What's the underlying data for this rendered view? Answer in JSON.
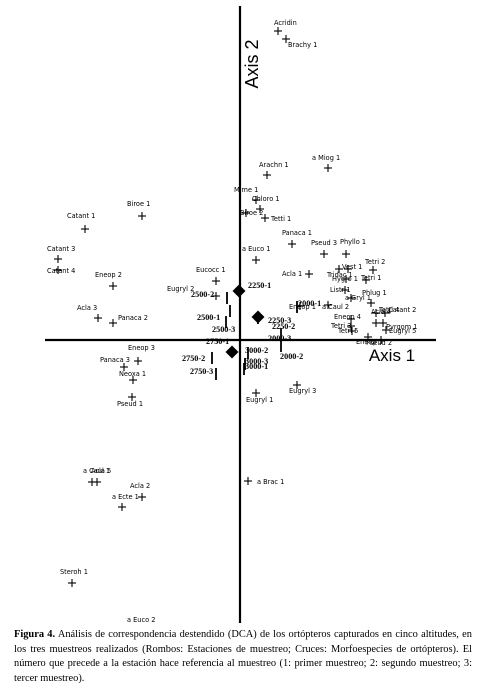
{
  "chart_data": {
    "type": "scatter",
    "xlabel": "Axis 1",
    "ylabel": "Axis 2",
    "xlim": [
      -240,
      240
    ],
    "ylim": [
      -282,
      337
    ],
    "grid": false,
    "species": [
      {
        "label": "Acridin",
        "x": 38,
        "y": 309
      },
      {
        "label": "Brachy 1",
        "x": 46,
        "y": 301
      },
      {
        "label": "a Miog 1",
        "x": 88,
        "y": 172
      },
      {
        "label": "Arachn 1",
        "x": 27,
        "y": 165
      },
      {
        "label": "Mime 1",
        "x": 16,
        "y": 140
      },
      {
        "label": "Chloro 1",
        "x": 20,
        "y": 131
      },
      {
        "label": "Biroe 2",
        "x": 6,
        "y": 127
      },
      {
        "label": "Tetti 1",
        "x": 25,
        "y": 122
      },
      {
        "label": "Biroe 1",
        "x": -98,
        "y": 124
      },
      {
        "label": "Catant 1",
        "x": -155,
        "y": 111
      },
      {
        "label": "Panaca 1",
        "x": 52,
        "y": 96
      },
      {
        "label": "a Euco 1",
        "x": 16,
        "y": 80
      },
      {
        "label": "Pseud 3",
        "x": 84,
        "y": 86
      },
      {
        "label": "Phyllo 1",
        "x": 106,
        "y": 86
      },
      {
        "label": "Catant 3",
        "x": -182,
        "y": 81
      },
      {
        "label": "Catant 4",
        "x": -182,
        "y": 70
      },
      {
        "label": "Acla 1",
        "x": 69,
        "y": 66
      },
      {
        "label": "Tridac 1",
        "x": 99,
        "y": 71
      },
      {
        "label": "Vest 1",
        "x": 108,
        "y": 71
      },
      {
        "label": "Tetri 2",
        "x": 133,
        "y": 70
      },
      {
        "label": "Hygro 1",
        "x": 106,
        "y": 61
      },
      {
        "label": "Tetri 1",
        "x": 126,
        "y": 60
      },
      {
        "label": "Eucocc 1",
        "x": -24,
        "y": 59
      },
      {
        "label": "Eneop 2",
        "x": -127,
        "y": 54
      },
      {
        "label": "Eugryl 2",
        "x": -24,
        "y": 44
      },
      {
        "label": "Listr 1",
        "x": 105,
        "y": 50
      },
      {
        "label": "a Gryl 1",
        "x": 111,
        "y": 42
      },
      {
        "label": "Eneop 1",
        "x": 60,
        "y": 34
      },
      {
        "label": "a Caul 2",
        "x": 88,
        "y": 35
      },
      {
        "label": "Phlug 1",
        "x": 131,
        "y": 37
      },
      {
        "label": "Tetri 4",
        "x": 136,
        "y": 27
      },
      {
        "label": "Catant 2",
        "x": 145,
        "y": 27
      },
      {
        "label": "Eneop 4",
        "x": 111,
        "y": 21
      },
      {
        "label": "Acla 4",
        "x": 136,
        "y": 17
      },
      {
        "label": "Pyrgom 1",
        "x": 143,
        "y": 17
      },
      {
        "label": "Tetri 3",
        "x": 111,
        "y": 14
      },
      {
        "label": "Tetri 5",
        "x": 112,
        "y": 9
      },
      {
        "label": "Eugryl 5",
        "x": 146,
        "y": 10
      },
      {
        "label": "Eneop 5",
        "x": 128,
        "y": 3
      },
      {
        "label": "Pseud 2",
        "x": 141,
        "y": 0
      },
      {
        "label": "Acla 3",
        "x": -142,
        "y": 22
      },
      {
        "label": "Panaca 2",
        "x": -127,
        "y": 17
      },
      {
        "label": "Eneop 3",
        "x": -102,
        "y": -21
      },
      {
        "label": "Panaca 3",
        "x": -116,
        "y": -27
      },
      {
        "label": "Neoxa 1",
        "x": -107,
        "y": -40
      },
      {
        "label": "Pseud 1",
        "x": -108,
        "y": -57
      },
      {
        "label": "Eugryl 3",
        "x": 57,
        "y": -45
      },
      {
        "label": "Eugryl 1",
        "x": 16,
        "y": -53
      },
      {
        "label": "a Brac 1",
        "x": 8,
        "y": -141
      },
      {
        "label": "a Caul 1",
        "x": -148,
        "y": -142
      },
      {
        "label": "Acla 5",
        "x": -143,
        "y": -142
      },
      {
        "label": "Acla 2",
        "x": -98,
        "y": -157
      },
      {
        "label": "a Ecte 1",
        "x": -118,
        "y": -167
      },
      {
        "label": "Steroh 1",
        "x": -168,
        "y": -243
      },
      {
        "label": "a Euco 2",
        "x": -97,
        "y": -290
      }
    ],
    "stations": [
      {
        "label": "2250-1",
        "x": -1,
        "y": 49
      },
      {
        "label": "2250-3",
        "x": 18,
        "y": 22
      },
      {
        "label": "2250-2",
        "x": 18,
        "y": 23
      },
      {
        "label": "2000-1",
        "x": 57,
        "y": 33
      },
      {
        "label": "2000-3",
        "x": 41,
        "y": 6
      },
      {
        "label": "2000-2",
        "x": 41,
        "y": -6
      },
      {
        "label": "2500-2",
        "x": -13,
        "y": 42
      },
      {
        "label": "2500-1",
        "x": -10,
        "y": 29
      },
      {
        "label": "2500-3",
        "x": -14,
        "y": 18
      },
      {
        "label": "2750-1",
        "x": -8,
        "y": -12
      },
      {
        "label": "2750-2",
        "x": -28,
        "y": -18
      },
      {
        "label": "2750-3",
        "x": -24,
        "y": -34
      },
      {
        "label": "3000-2",
        "x": 8,
        "y": -13
      },
      {
        "label": "3000-3",
        "x": 5,
        "y": -24
      },
      {
        "label": "3000-1",
        "x": 4,
        "y": -29
      }
    ]
  },
  "caption": {
    "figure_label": "Figura 4.",
    "text": "Análisis de correspondencia destendido (DCA) de los ortópteros capturados en cinco altitudes, en los tres muestreos realizados (Rombos: Estaciones de muestreo; Cruces: Morfoespecies de ortópteros). El número que precede a la estación hace referencia al muestreo (1: primer muestreo; 2: segundo muestreo; 3: tercer muestreo)."
  }
}
